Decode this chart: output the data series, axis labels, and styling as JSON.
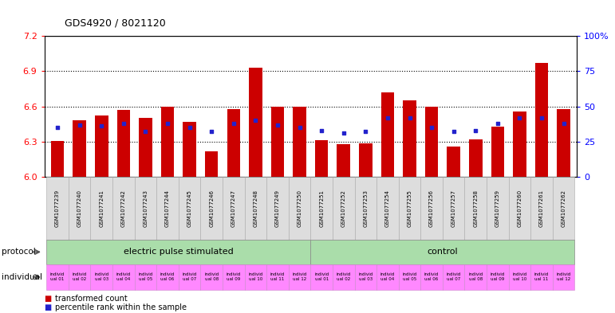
{
  "title": "GDS4920 / 8021120",
  "samples": [
    "GSM1077239",
    "GSM1077240",
    "GSM1077241",
    "GSM1077242",
    "GSM1077243",
    "GSM1077244",
    "GSM1077245",
    "GSM1077246",
    "GSM1077247",
    "GSM1077248",
    "GSM1077249",
    "GSM1077250",
    "GSM1077251",
    "GSM1077252",
    "GSM1077253",
    "GSM1077254",
    "GSM1077255",
    "GSM1077256",
    "GSM1077257",
    "GSM1077258",
    "GSM1077259",
    "GSM1077260",
    "GSM1077261",
    "GSM1077262"
  ],
  "transformed_count": [
    6.305,
    6.48,
    6.52,
    6.57,
    6.5,
    6.6,
    6.47,
    6.22,
    6.58,
    6.93,
    6.595,
    6.595,
    6.31,
    6.28,
    6.285,
    6.72,
    6.655,
    6.595,
    6.255,
    6.32,
    6.425,
    6.56,
    6.97,
    6.575
  ],
  "percentile_rank": [
    35,
    37,
    36,
    38,
    32,
    38,
    35,
    32,
    38,
    40,
    37,
    35,
    33,
    31,
    32,
    42,
    42,
    35,
    32,
    33,
    38,
    42,
    42,
    38
  ],
  "groups": [
    {
      "label": "electric pulse stimulated",
      "start": 0,
      "end": 12,
      "color": "#aaddaa"
    },
    {
      "label": "control",
      "start": 12,
      "end": 24,
      "color": "#aaddaa"
    }
  ],
  "individual_labels": [
    "individ\nual 01",
    "individ\nual 02",
    "individ\nual 03",
    "individ\nual 04",
    "individ\nual 05",
    "individ\nual 06",
    "individ\nual 07",
    "individ\nual 08",
    "individ\nual 09",
    "individ\nual 10",
    "individ\nual 11",
    "individ\nual 12",
    "individ\nual 01",
    "individ\nual 02",
    "individ\nual 03",
    "individ\nual 04",
    "individ\nual 05",
    "individ\nual 06",
    "individ\nual 07",
    "individ\nual 08",
    "individ\nual 09",
    "individ\nual 10",
    "individ\nual 11",
    "individ\nual 12"
  ],
  "ymin": 6.0,
  "ymax": 7.2,
  "yticks_left": [
    6.0,
    6.3,
    6.6,
    6.9,
    7.2
  ],
  "yticks_right_vals": [
    0,
    25,
    50,
    75,
    100
  ],
  "bar_color": "#cc0000",
  "marker_color": "#2222cc",
  "background_color": "#ffffff",
  "individual_color": "#ff88ff",
  "xtick_box_color": "#dddddd"
}
